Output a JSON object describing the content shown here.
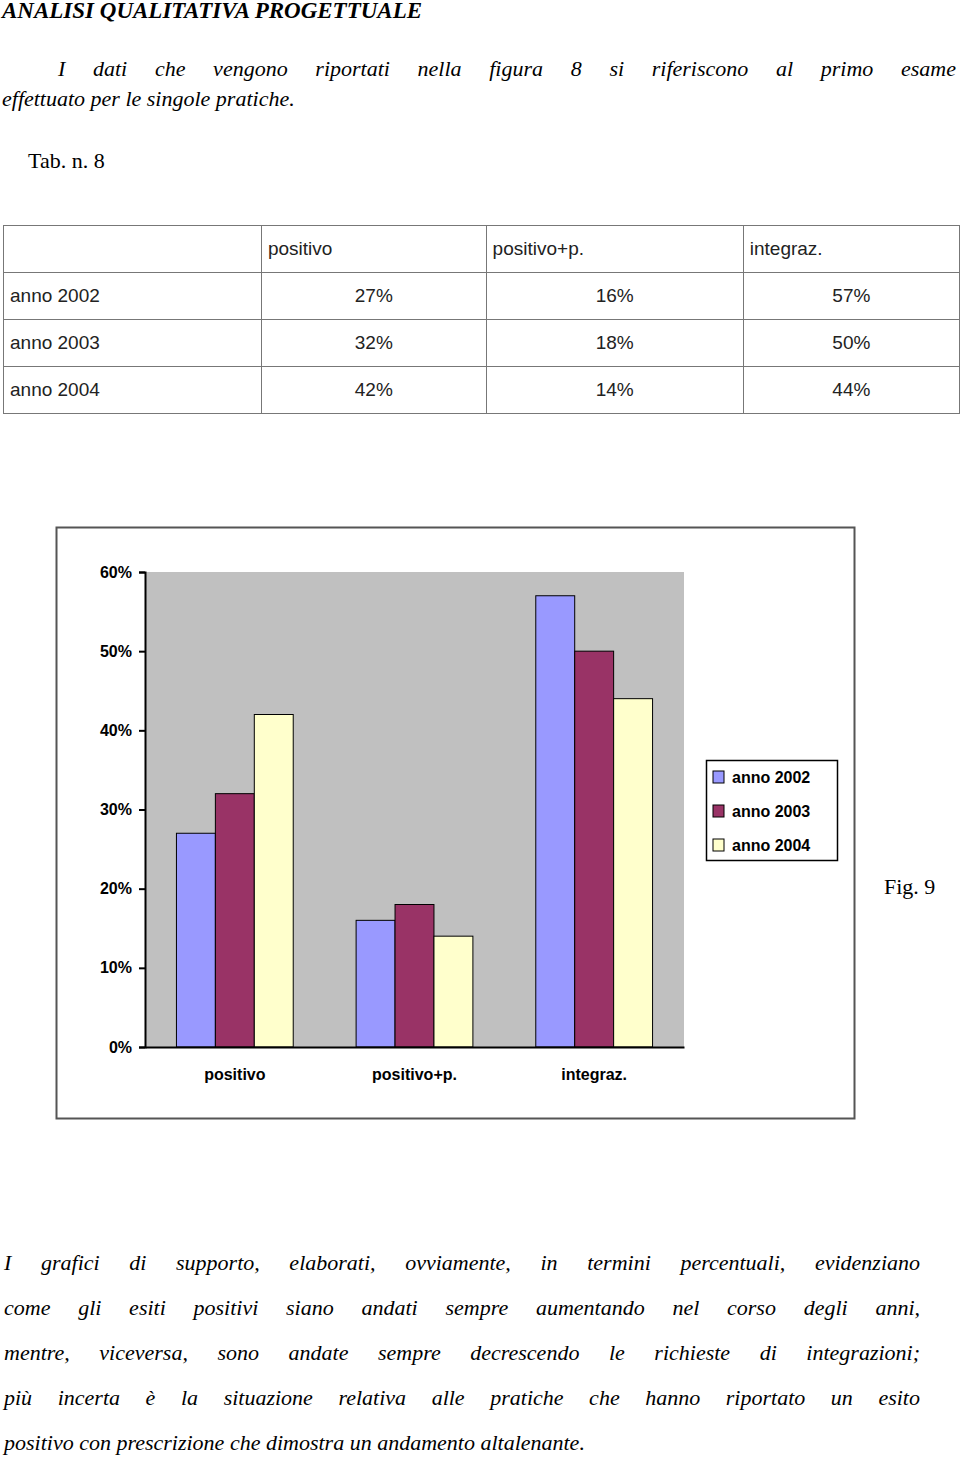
{
  "document": {
    "heading": "ANALISI QUALITATIVA PROGETTUALE",
    "intro_lines": [
      "I dati che vengono riportati nella figura 8 si riferiscono al primo esame",
      "effettuato per le singole pratiche."
    ],
    "table_caption": "Tab. n. 8",
    "table": {
      "columns": [
        "positivo",
        "positivo+p.",
        "integraz."
      ],
      "rows": [
        {
          "label": "anno 2002",
          "cells": [
            "27%",
            "16%",
            "57%"
          ]
        },
        {
          "label": "anno 2003",
          "cells": [
            "32%",
            "18%",
            "50%"
          ]
        },
        {
          "label": "anno 2004",
          "cells": [
            "42%",
            "14%",
            "44%"
          ]
        }
      ]
    },
    "figure_caption": "Fig. 9",
    "body_lines": [
      "I grafici di supporto, elaborati, ovviamente, in termini percentuali, evidenziano",
      "come gli esiti positivi siano andati sempre aumentando nel corso degli anni,",
      "mentre, viceversa, sono andate sempre decrescendo le richieste di integrazioni;",
      "più incerta è la situazione relativa alle pratiche che hanno riportato un esito",
      "positivo con prescrizione che dimostra un andamento altalenante."
    ]
  },
  "chart_data": {
    "type": "bar",
    "categories": [
      "positivo",
      "positivo+p.",
      "integraz."
    ],
    "series": [
      {
        "name": "anno 2002",
        "color": "#9999ff",
        "values": [
          27,
          16,
          57
        ]
      },
      {
        "name": "anno 2003",
        "color": "#993366",
        "values": [
          32,
          18,
          50
        ]
      },
      {
        "name": "anno 2004",
        "color": "#ffffcc",
        "values": [
          42,
          14,
          44
        ]
      }
    ],
    "ylim": [
      0,
      60
    ],
    "yticks": [
      {
        "value": 0,
        "label": "0%"
      },
      {
        "value": 10,
        "label": "10%"
      },
      {
        "value": 20,
        "label": "20%"
      },
      {
        "value": 30,
        "label": "30%"
      },
      {
        "value": 40,
        "label": "40%"
      },
      {
        "value": 50,
        "label": "50%"
      },
      {
        "value": 60,
        "label": "60%"
      }
    ],
    "grid": false,
    "legend": "right"
  }
}
